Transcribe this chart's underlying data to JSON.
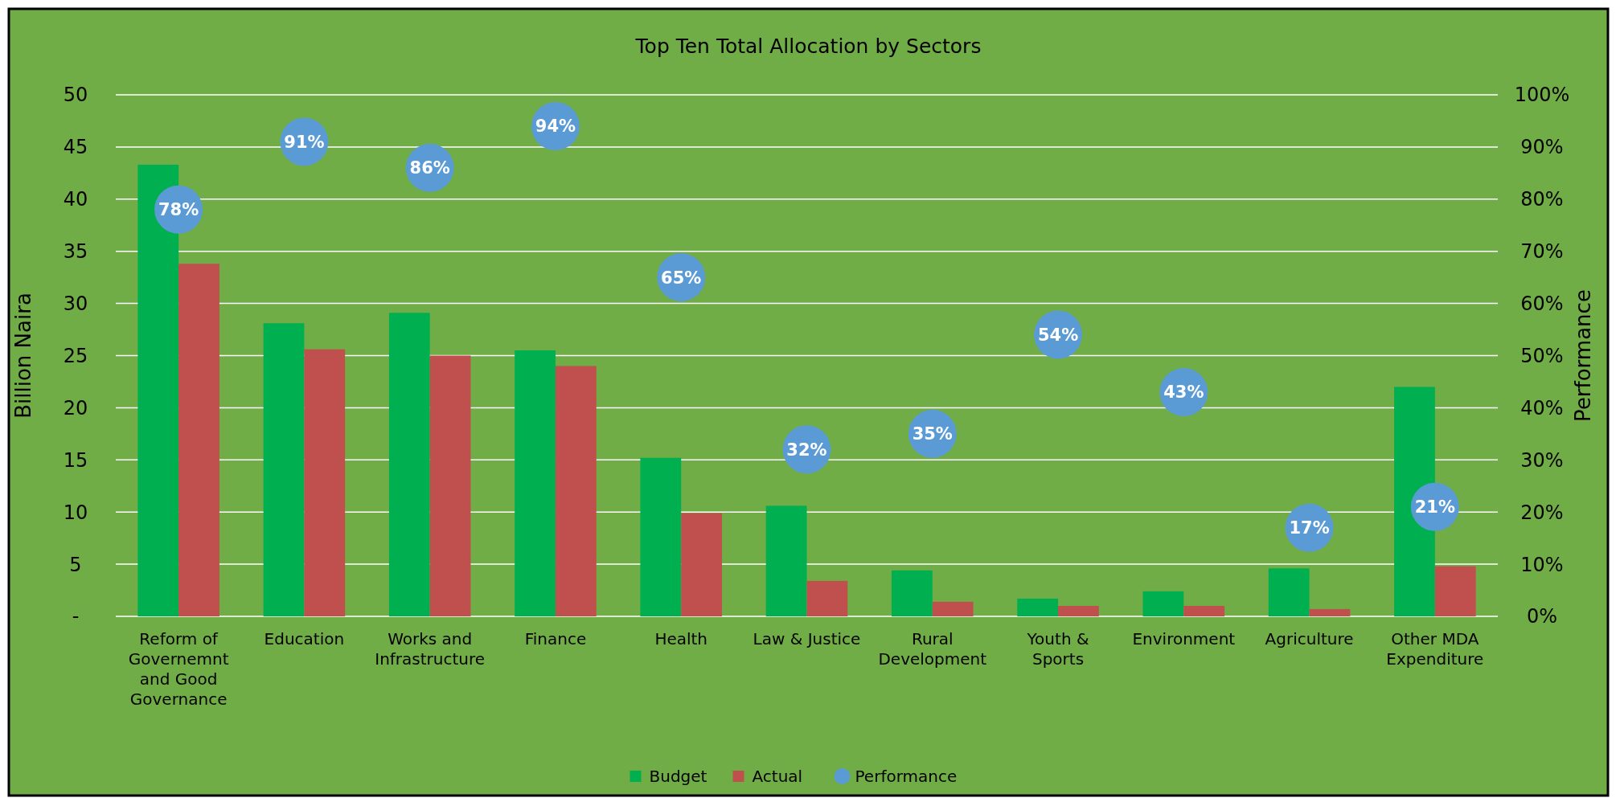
{
  "chart_data": {
    "type": "bar",
    "title": "Top Ten Total Allocation by Sectors",
    "ylabel": "Billion Naira",
    "y2label": "Performance",
    "categories": [
      "Reform of Governemnt and Good Governance",
      "Education",
      "Works and Infrastructure",
      "Finance",
      "Health",
      "Law & Justice",
      "Rural Development",
      "Youth & Sports",
      "Environment",
      "Agriculture",
      "Other MDA Expenditure"
    ],
    "series": [
      {
        "name": "Budget",
        "color": "#00b050",
        "values": [
          43.3,
          28.1,
          29.1,
          25.5,
          15.2,
          10.6,
          4.4,
          1.7,
          2.4,
          4.6,
          22.0
        ]
      },
      {
        "name": "Actual",
        "color": "#c0504d",
        "values": [
          33.8,
          25.6,
          25.0,
          24.0,
          9.9,
          3.4,
          1.4,
          1.0,
          1.0,
          0.7,
          4.8
        ]
      },
      {
        "name": "Performance",
        "type": "scatter",
        "axis": "y2",
        "marker": "circle",
        "color": "#5b9bd5",
        "values": [
          78,
          91,
          86,
          94,
          65,
          32,
          35,
          54,
          43,
          17,
          21
        ],
        "value_labels": [
          "78%",
          "91%",
          "86%",
          "94%",
          "65%",
          "32%",
          "35%",
          "54%",
          "43%",
          "17%",
          "21%"
        ]
      }
    ],
    "ylim": [
      0,
      50
    ],
    "yticks": [
      {
        "value": 0,
        "label": "-"
      },
      5,
      10,
      15,
      20,
      25,
      30,
      35,
      40,
      45,
      50
    ],
    "y2lim": [
      0,
      100
    ],
    "y2ticks": [
      {
        "value": 0,
        "label": "0%"
      },
      {
        "value": 10,
        "label": "10%"
      },
      {
        "value": 20,
        "label": "20%"
      },
      {
        "value": 30,
        "label": "30%"
      },
      {
        "value": 40,
        "label": "40%"
      },
      {
        "value": 50,
        "label": "50%"
      },
      {
        "value": 60,
        "label": "60%"
      },
      {
        "value": 70,
        "label": "70%"
      },
      {
        "value": 80,
        "label": "80%"
      },
      {
        "value": 90,
        "label": "90%"
      },
      {
        "value": 100,
        "label": "100%"
      }
    ],
    "grid": "y",
    "legend": "bottom"
  }
}
